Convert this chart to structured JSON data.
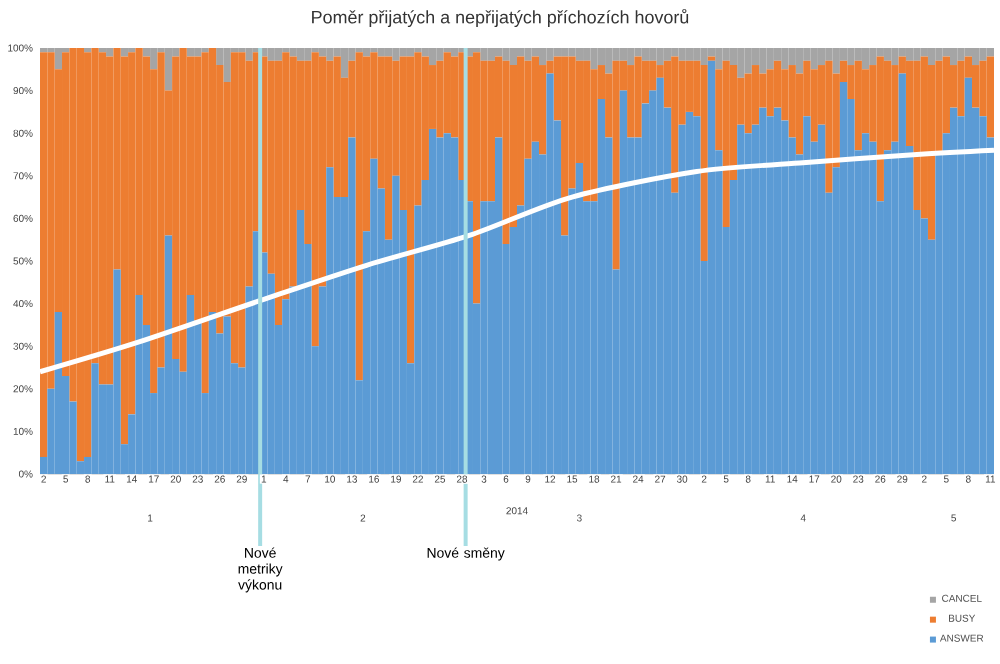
{
  "chart_data": {
    "type": "bar",
    "stacked": true,
    "title": "Poměr přijatých a nepřijatých příchozích hovorů",
    "xlabel": "2014",
    "x": [
      "2014-01-02",
      "2014-01-03",
      "2014-01-04",
      "2014-01-05",
      "2014-01-06",
      "2014-01-07",
      "2014-01-08",
      "2014-01-09",
      "2014-01-10",
      "2014-01-11",
      "2014-01-12",
      "2014-01-13",
      "2014-01-14",
      "2014-01-15",
      "2014-01-16",
      "2014-01-17",
      "2014-01-18",
      "2014-01-19",
      "2014-01-20",
      "2014-01-21",
      "2014-01-22",
      "2014-01-23",
      "2014-01-24",
      "2014-01-25",
      "2014-01-26",
      "2014-01-27",
      "2014-01-28",
      "2014-01-29",
      "2014-01-30",
      "2014-01-31",
      "2014-02-01",
      "2014-02-02",
      "2014-02-03",
      "2014-02-04",
      "2014-02-05",
      "2014-02-06",
      "2014-02-07",
      "2014-02-08",
      "2014-02-09",
      "2014-02-10",
      "2014-02-11",
      "2014-02-12",
      "2014-02-13",
      "2014-02-14",
      "2014-02-15",
      "2014-02-16",
      "2014-02-17",
      "2014-02-18",
      "2014-02-19",
      "2014-02-20",
      "2014-02-21",
      "2014-02-22",
      "2014-02-23",
      "2014-02-24",
      "2014-02-25",
      "2014-02-26",
      "2014-02-27",
      "2014-02-28",
      "2014-03-01",
      "2014-03-02",
      "2014-03-03",
      "2014-03-04",
      "2014-03-05",
      "2014-03-06",
      "2014-03-07",
      "2014-03-08",
      "2014-03-09",
      "2014-03-10",
      "2014-03-11",
      "2014-03-12",
      "2014-03-13",
      "2014-03-14",
      "2014-03-15",
      "2014-03-16",
      "2014-03-17",
      "2014-03-18",
      "2014-03-19",
      "2014-03-20",
      "2014-03-21",
      "2014-03-22",
      "2014-03-23",
      "2014-03-24",
      "2014-03-25",
      "2014-03-26",
      "2014-03-27",
      "2014-03-28",
      "2014-03-29",
      "2014-03-30",
      "2014-03-31",
      "2014-04-01",
      "2014-04-02",
      "2014-04-03",
      "2014-04-04",
      "2014-04-05",
      "2014-04-06",
      "2014-04-07",
      "2014-04-08",
      "2014-04-09",
      "2014-04-10",
      "2014-04-11",
      "2014-04-12",
      "2014-04-13",
      "2014-04-14",
      "2014-04-15",
      "2014-04-16",
      "2014-04-17",
      "2014-04-18",
      "2014-04-19",
      "2014-04-20",
      "2014-04-21",
      "2014-04-22",
      "2014-04-23",
      "2014-04-24",
      "2014-04-25",
      "2014-04-26",
      "2014-04-27",
      "2014-04-28",
      "2014-04-29",
      "2014-04-30",
      "2014-05-01",
      "2014-05-02",
      "2014-05-03",
      "2014-05-04",
      "2014-05-05",
      "2014-05-06",
      "2014-05-07",
      "2014-05-08",
      "2014-05-09",
      "2014-05-10",
      "2014-05-11"
    ],
    "series": [
      {
        "name": "ANSWER",
        "color": "#5b9bd5",
        "values": [
          4,
          20,
          38,
          23,
          17,
          3,
          4,
          26,
          21,
          21,
          48,
          7,
          14,
          42,
          35,
          19,
          25,
          56,
          27,
          24,
          42,
          36,
          19,
          38,
          33,
          37,
          26,
          25,
          44,
          57,
          52,
          47,
          35,
          41,
          44,
          62,
          54,
          30,
          44,
          72,
          65,
          65,
          79,
          22,
          57,
          74,
          67,
          55,
          70,
          62,
          26,
          63,
          69,
          81,
          79,
          80,
          79,
          69,
          64,
          40,
          64,
          64,
          79,
          54,
          58,
          63,
          74,
          78,
          75,
          94,
          83,
          56,
          67,
          73,
          64,
          64,
          88,
          79,
          48,
          90,
          79,
          79,
          87,
          90,
          93,
          86,
          66,
          82,
          85,
          84,
          50,
          97,
          76,
          58,
          69,
          82,
          80,
          82,
          86,
          84,
          86,
          83,
          79,
          75,
          84,
          78,
          82,
          66,
          72,
          92,
          88,
          76,
          80,
          78,
          64,
          76,
          78,
          94,
          77,
          62,
          60,
          55,
          75,
          80,
          86,
          84,
          93,
          86,
          84,
          79
        ]
      },
      {
        "name": "BUSY",
        "color": "#ed7d31",
        "values": [
          95,
          79,
          57,
          76,
          83,
          97,
          95,
          74,
          78,
          77,
          52,
          91,
          85,
          58,
          63,
          76,
          74,
          34,
          71,
          76,
          56,
          62,
          80,
          62,
          63,
          55,
          73,
          74,
          53,
          42,
          46,
          50,
          62,
          58,
          54,
          35,
          43,
          69,
          54,
          25,
          33,
          28,
          18,
          77,
          41,
          25,
          31,
          43,
          27,
          36,
          72,
          36,
          29,
          15,
          18,
          19,
          19,
          30,
          34,
          59,
          33,
          33,
          19,
          43,
          38,
          35,
          23,
          20,
          21,
          3,
          15,
          42,
          31,
          24,
          33,
          31,
          8,
          15,
          49,
          7,
          17,
          19,
          10,
          7,
          3,
          11,
          32,
          15,
          12,
          13,
          46,
          1,
          19,
          39,
          27,
          11,
          14,
          14,
          8,
          11,
          11,
          12,
          17,
          19,
          13,
          17,
          14,
          31,
          22,
          5,
          8,
          21,
          15,
          18,
          34,
          21,
          18,
          4,
          20,
          35,
          38,
          41,
          22,
          18,
          10,
          13,
          5,
          10,
          13,
          19
        ]
      },
      {
        "name": "CANCEL",
        "color": "#a5a5a5",
        "values": [
          1,
          1,
          5,
          1,
          0,
          0,
          1,
          0,
          1,
          2,
          0,
          2,
          1,
          0,
          2,
          5,
          1,
          10,
          2,
          0,
          2,
          2,
          1,
          0,
          4,
          8,
          1,
          1,
          3,
          1,
          2,
          3,
          3,
          1,
          2,
          3,
          3,
          1,
          2,
          3,
          2,
          7,
          3,
          1,
          2,
          1,
          2,
          2,
          3,
          2,
          2,
          1,
          2,
          4,
          3,
          1,
          2,
          1,
          2,
          1,
          3,
          3,
          2,
          3,
          4,
          2,
          3,
          2,
          4,
          3,
          2,
          2,
          2,
          3,
          3,
          5,
          4,
          6,
          3,
          3,
          4,
          2,
          3,
          3,
          4,
          3,
          2,
          3,
          3,
          3,
          4,
          2,
          5,
          3,
          4,
          7,
          6,
          4,
          6,
          5,
          3,
          5,
          4,
          6,
          3,
          5,
          4,
          3,
          6,
          3,
          4,
          3,
          5,
          4,
          2,
          3,
          4,
          2,
          3,
          3,
          2,
          4,
          3,
          2,
          4,
          3,
          2,
          4,
          3,
          2
        ]
      },
      {
        "type": "line",
        "color": "#ffffff",
        "x": [
          "2014-01-01T12:00",
          "2014-01-15",
          "2014-02-01",
          "2014-02-15",
          "2014-03-01",
          "2014-03-15",
          "2014-04-01",
          "2014-04-15",
          "2014-05-01",
          "2014-05-11T12:00"
        ],
        "values": [
          24,
          31,
          41,
          49,
          56,
          65,
          71,
          73,
          75,
          76
        ]
      }
    ],
    "xlim": [
      "2014-01-01T12:00",
      "2014-05-11T12:00"
    ],
    "xticks": [
      {
        "value": "2014-01-02",
        "label": "2"
      },
      {
        "value": "2014-01-05",
        "label": "5"
      },
      {
        "value": "2014-01-08",
        "label": "8"
      },
      {
        "value": "2014-01-11",
        "label": "11"
      },
      {
        "value": "2014-01-14",
        "label": "14"
      },
      {
        "value": "2014-01-17",
        "label": "17"
      },
      {
        "value": "2014-01-20",
        "label": "20"
      },
      {
        "value": "2014-01-23",
        "label": "23"
      },
      {
        "value": "2014-01-26",
        "label": "26"
      },
      {
        "value": "2014-01-29",
        "label": "29"
      },
      {
        "value": "2014-02-01",
        "label": "1"
      },
      {
        "value": "2014-02-04",
        "label": "4"
      },
      {
        "value": "2014-02-07",
        "label": "7"
      },
      {
        "value": "2014-02-10",
        "label": "10"
      },
      {
        "value": "2014-02-13",
        "label": "13"
      },
      {
        "value": "2014-02-16",
        "label": "16"
      },
      {
        "value": "2014-02-19",
        "label": "19"
      },
      {
        "value": "2014-02-22",
        "label": "22"
      },
      {
        "value": "2014-02-25",
        "label": "25"
      },
      {
        "value": "2014-02-28",
        "label": "28"
      },
      {
        "value": "2014-03-03",
        "label": "3"
      },
      {
        "value": "2014-03-06",
        "label": "6"
      },
      {
        "value": "2014-03-09",
        "label": "9"
      },
      {
        "value": "2014-03-12",
        "label": "12"
      },
      {
        "value": "2014-03-15",
        "label": "15"
      },
      {
        "value": "2014-03-18",
        "label": "18"
      },
      {
        "value": "2014-03-21",
        "label": "21"
      },
      {
        "value": "2014-03-24",
        "label": "24"
      },
      {
        "value": "2014-03-27",
        "label": "27"
      },
      {
        "value": "2014-03-30",
        "label": "30"
      },
      {
        "value": "2014-04-02",
        "label": "2"
      },
      {
        "value": "2014-04-05",
        "label": "5"
      },
      {
        "value": "2014-04-08",
        "label": "8"
      },
      {
        "value": "2014-04-11",
        "label": "11"
      },
      {
        "value": "2014-04-14",
        "label": "14"
      },
      {
        "value": "2014-04-17",
        "label": "17"
      },
      {
        "value": "2014-04-20",
        "label": "20"
      },
      {
        "value": "2014-04-23",
        "label": "23"
      },
      {
        "value": "2014-04-26",
        "label": "26"
      },
      {
        "value": "2014-04-29",
        "label": "29"
      },
      {
        "value": "2014-05-02",
        "label": "2"
      },
      {
        "value": "2014-05-05",
        "label": "5"
      },
      {
        "value": "2014-05-08",
        "label": "8"
      },
      {
        "value": "2014-05-11",
        "label": "11"
      }
    ],
    "ylim": [
      0,
      100
    ],
    "yticks": [
      {
        "value": 0,
        "label": "0%"
      },
      {
        "value": 10,
        "label": "10%"
      },
      {
        "value": 20,
        "label": "20%"
      },
      {
        "value": 30,
        "label": "30%"
      },
      {
        "value": 40,
        "label": "40%"
      },
      {
        "value": 50,
        "label": "50%"
      },
      {
        "value": 60,
        "label": "60%"
      },
      {
        "value": 70,
        "label": "70%"
      },
      {
        "value": 80,
        "label": "80%"
      },
      {
        "value": 90,
        "label": "90%"
      },
      {
        "value": 100,
        "label": "100%"
      }
    ],
    "ref_lines": [
      {
        "axis": "x",
        "value": "2014-01-31T12:00",
        "label": "Nové metriky výkonu",
        "color": "#a6dde3"
      },
      {
        "axis": "x",
        "value": "2014-02-28T12:00",
        "label": "Nové směny",
        "color": "#a6dde3"
      }
    ],
    "annotations": [
      "1",
      "2",
      "3",
      "4",
      "5"
    ],
    "legend": "bottom right"
  }
}
